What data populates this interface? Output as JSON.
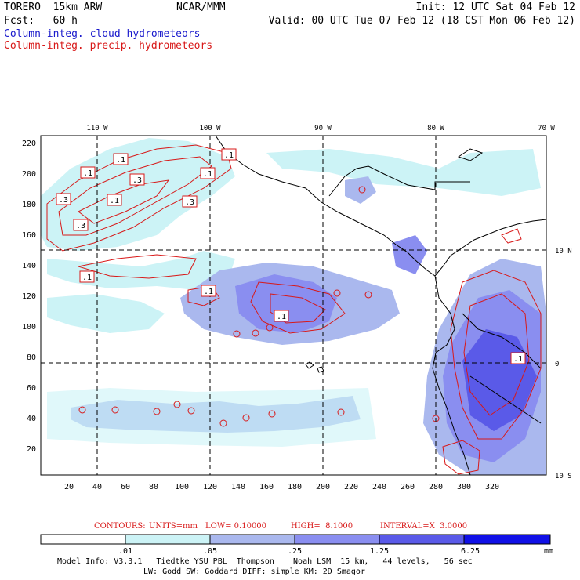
{
  "header": {
    "model": "TORERO  15km ARW",
    "org": "NCAR/MMM",
    "init": "Init: 12 UTC Sat 04 Feb 12",
    "fcst": "Fcst:   60 h",
    "valid": "Valid: 00 UTC Tue 07 Feb 12 (18 CST Mon 06 Feb 12)",
    "field1": "Column-integ. cloud hydrometeors",
    "field2": "Column-integ. precip. hydrometeors"
  },
  "colors": {
    "field1": "#1a1acc",
    "field2": "#d81818",
    "shade": [
      "#ffffff",
      "#ccf3f6",
      "#aab8ee",
      "#8a8ef0",
      "#5a5ae8",
      "#3030e0",
      "#1010e6"
    ]
  },
  "map": {
    "lon_labels": [
      "110 W",
      "100 W",
      "90 W",
      "80 W",
      "70 W"
    ],
    "lat_labels": [
      "10 N",
      "0",
      "10 S"
    ],
    "y_ticks": [
      "220",
      "200",
      "180",
      "160",
      "140",
      "120",
      "100",
      "80",
      "60",
      "40",
      "20"
    ],
    "x_ticks": [
      "20",
      "40",
      "60",
      "80",
      "100",
      "120",
      "140",
      "160",
      "180",
      "200",
      "220",
      "240",
      "260",
      "280",
      "300",
      "320"
    ],
    "contour_labels": [
      ".1",
      ".1",
      ".1",
      ".3",
      ".1",
      ".3",
      ".1",
      ".3",
      ".3",
      ".1",
      ".1",
      ".1",
      ".1"
    ]
  },
  "contour_info": {
    "contours": "CONTOURS:",
    "units": "UNITS=mm",
    "low": "LOW= 0.10000",
    "high": "HIGH=  8.1000",
    "interval": "INTERVAL=X  3.0000"
  },
  "colorbar": {
    "labels": [
      ".01",
      ".05",
      ".25",
      "1.25",
      "6.25"
    ],
    "unit": "mm"
  },
  "footer": {
    "line1": "Model Info: V3.3.1   Tiedtke YSU PBL  Thompson    Noah LSM  15 km,   44 levels,   56 sec",
    "line2": "LW: Godd SW: Goddard DIFF: simple KM: 2D Smagor"
  }
}
